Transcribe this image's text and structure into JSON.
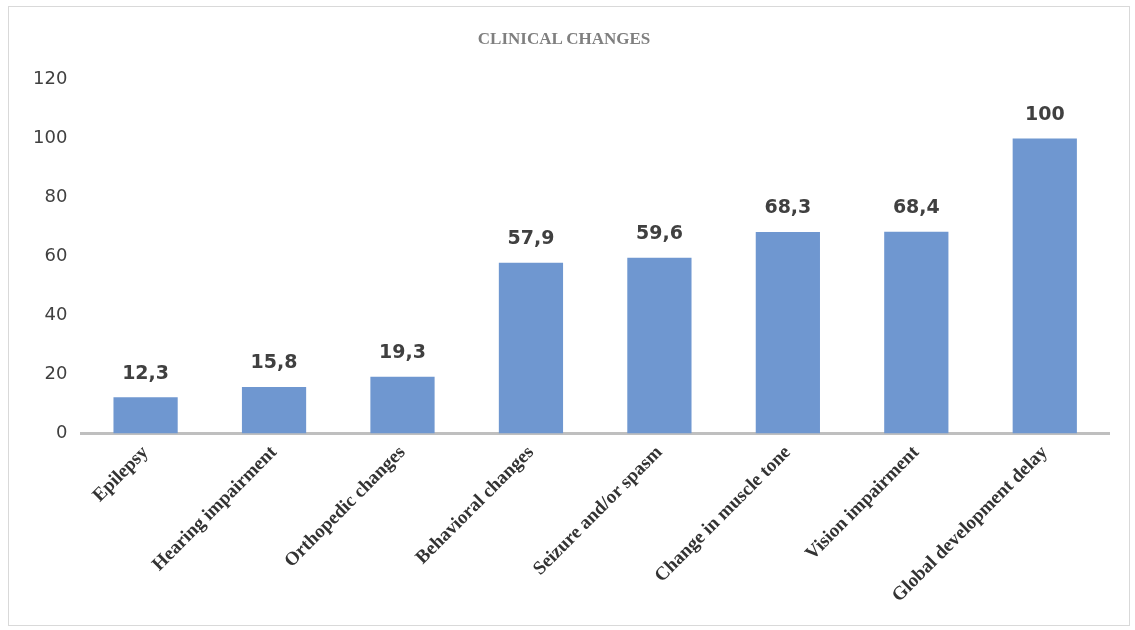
{
  "chart_data": {
    "type": "bar",
    "title": "CLINICAL CHANGES",
    "categories": [
      "Epilepsy",
      "Hearing impairment",
      "Orthopedic changes",
      "Behavioral changes",
      "Seizure and/or spasm",
      "Change in muscle tone",
      "Vision impairment",
      "Global development delay"
    ],
    "values": [
      12.3,
      15.8,
      19.3,
      57.9,
      59.6,
      68.3,
      68.4,
      100
    ],
    "value_labels": [
      "12,3",
      "15,8",
      "19,3",
      "57,9",
      "59,6",
      "68,3",
      "68,4",
      "100"
    ],
    "color": "#6f97d0",
    "ylim": [
      0,
      120
    ],
    "yticks": [
      0,
      20,
      40,
      60,
      80,
      100,
      120
    ],
    "grid": false,
    "legend": false
  }
}
